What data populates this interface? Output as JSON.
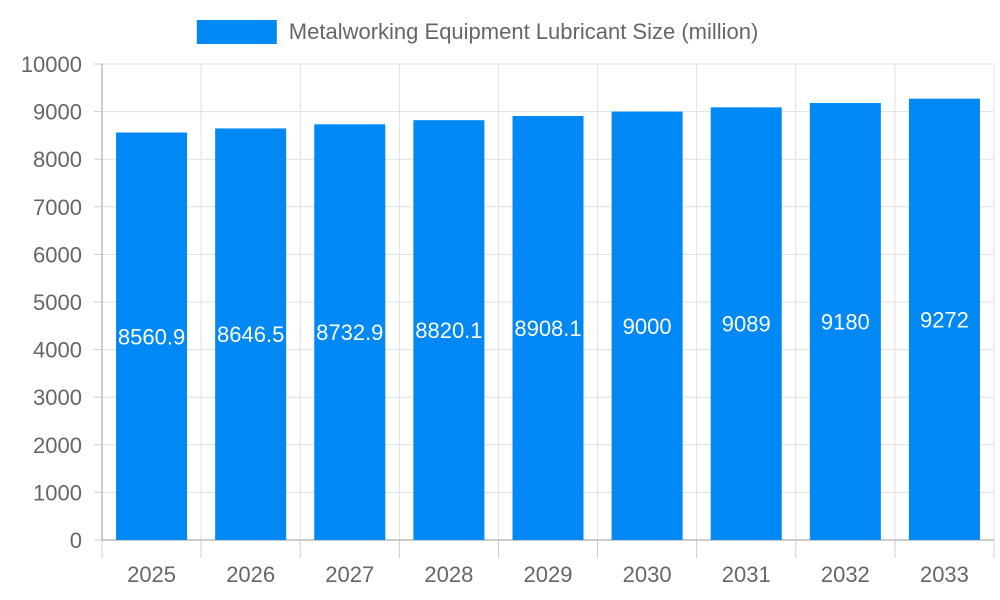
{
  "chart_data": {
    "type": "bar",
    "categories": [
      "2025",
      "2026",
      "2027",
      "2028",
      "2029",
      "2030",
      "2031",
      "2032",
      "2033"
    ],
    "series": [
      {
        "name": "Metalworking Equipment Lubricant Size (million)",
        "values": [
          8560.9,
          8646.5,
          8732.9,
          8820.1,
          8908.1,
          9000,
          9089,
          9180,
          9272
        ],
        "value_labels": [
          "8560.9",
          "8646.5",
          "8732.9",
          "8820.1",
          "8908.1",
          "9000",
          "9089",
          "9180",
          "9272"
        ],
        "color": "#0088f5"
      }
    ],
    "title": "",
    "xlabel": "",
    "ylabel": "",
    "ylim": [
      0,
      10000
    ],
    "yticks": [
      0,
      1000,
      2000,
      3000,
      4000,
      5000,
      6000,
      7000,
      8000,
      9000,
      10000
    ],
    "grid": true,
    "legend_position": "top-center"
  }
}
